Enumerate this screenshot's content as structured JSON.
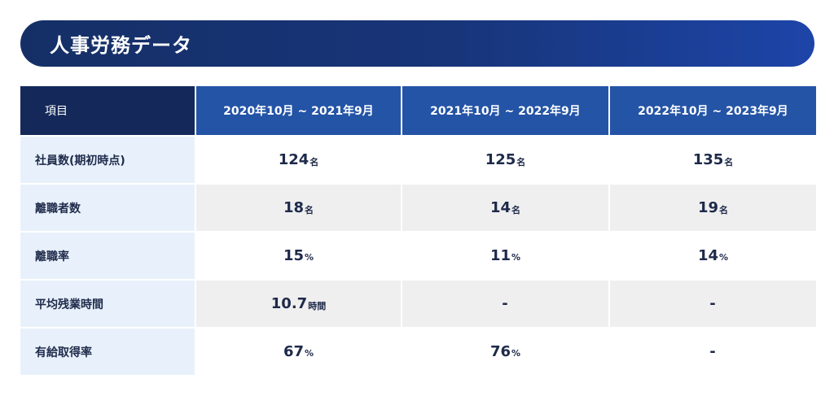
{
  "title": "人事労務データ",
  "table": {
    "columns": [
      "項目",
      "2020年10月 ~ 2021年9月",
      "2021年10月 ~ 2022年9月",
      "2022年10月 ~ 2023年9月"
    ],
    "rows": [
      {
        "label": "社員数(期初時点)",
        "values": [
          {
            "num": "124",
            "unit": "名"
          },
          {
            "num": "125",
            "unit": "名"
          },
          {
            "num": "135",
            "unit": "名"
          }
        ]
      },
      {
        "label": "離職者数",
        "values": [
          {
            "num": "18",
            "unit": "名"
          },
          {
            "num": "14",
            "unit": "名"
          },
          {
            "num": "19",
            "unit": "名"
          }
        ]
      },
      {
        "label": "離職率",
        "values": [
          {
            "num": "15",
            "unit": "%"
          },
          {
            "num": "11",
            "unit": "%"
          },
          {
            "num": "14",
            "unit": "%"
          }
        ]
      },
      {
        "label": "平均残業時間",
        "values": [
          {
            "num": "10.7",
            "unit": "時間"
          },
          {
            "num": "-",
            "unit": ""
          },
          {
            "num": "-",
            "unit": ""
          }
        ]
      },
      {
        "label": "有給取得率",
        "values": [
          {
            "num": "67",
            "unit": "%"
          },
          {
            "num": "76",
            "unit": "%"
          },
          {
            "num": "-",
            "unit": ""
          }
        ]
      }
    ]
  }
}
